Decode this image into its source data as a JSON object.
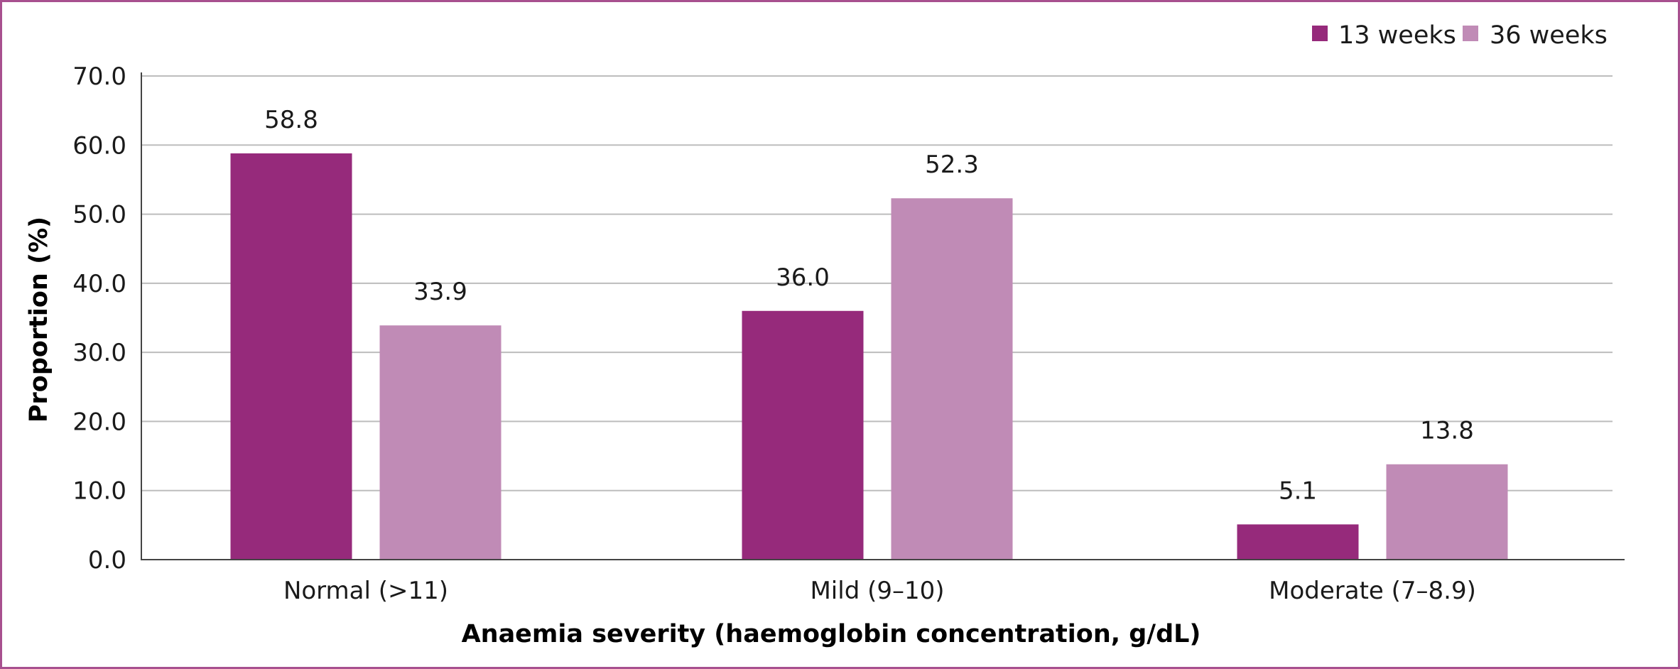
{
  "chart_data": {
    "type": "bar",
    "categories": [
      "Normal (>11)",
      "Mild (9–10)",
      "Moderate (7–8.9)"
    ],
    "series": [
      {
        "name": "13 weeks",
        "values": [
          58.8,
          36.0,
          5.1
        ],
        "labels": [
          "58.8",
          "36.0",
          "5.1"
        ],
        "color": "#962a7b"
      },
      {
        "name": "36 weeks",
        "values": [
          33.9,
          52.3,
          13.8
        ],
        "labels": [
          "33.9",
          "52.3",
          "13.8"
        ],
        "color": "#c08bb6"
      }
    ],
    "xlabel": "Anaemia severity (haemoglobin concentration, g/dL)",
    "ylabel": "Proportion (%)",
    "ylim": [
      0,
      70
    ],
    "yticks": [
      0,
      10,
      20,
      30,
      40,
      50,
      60,
      70
    ],
    "ytick_labels": [
      "0.0",
      "10.0",
      "20.0",
      "30.0",
      "40.0",
      "50.0",
      "60.0",
      "70.0"
    ],
    "grid": true,
    "legend": "top-right",
    "frame_color": "#a8508f",
    "grid_color": "#bdbdbd"
  }
}
